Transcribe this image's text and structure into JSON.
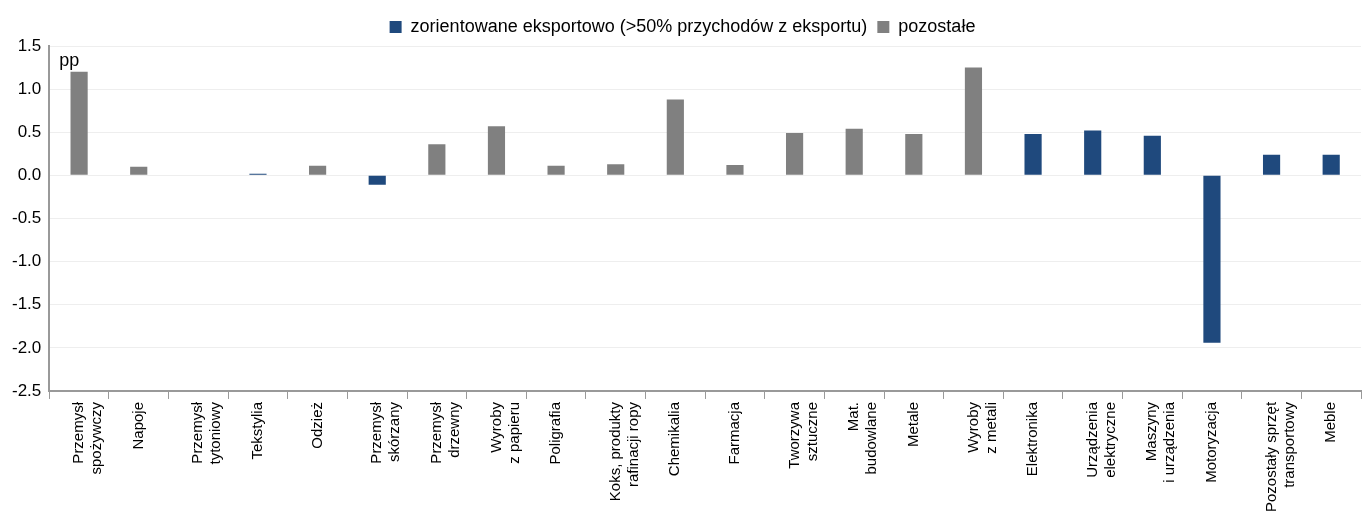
{
  "chart_data": {
    "type": "bar",
    "ylabel": "pp",
    "categories": [
      "Przemysł\nspożywczy",
      "Napoje",
      "Przemysł\ntytoniowy",
      "Tekstylia",
      "Odzież",
      "Przemysł\nskórzany",
      "Przemysł\ndrzewny",
      "Wyroby\nz papieru",
      "Poligrafia",
      "Koks, produkty\nrafinacji ropy",
      "Chemikalia",
      "Farmacja",
      "Tworzywa\nsztuczne",
      "Mat.\nbudowlane",
      "Metale",
      "Wyroby\nz metali",
      "Elektronika",
      "Urządzenia\nelektryczne",
      "Maszyny\ni urządzenia",
      "Motoryzacja",
      "Pozostały sprzęt\ntransportowy",
      "Meble"
    ],
    "series": [
      {
        "name": "zorientowane eksportowo (>50% przychodów z eksportu)",
        "color": "#1f497d",
        "values": [
          null,
          null,
          null,
          0.02,
          null,
          -0.11,
          null,
          null,
          null,
          null,
          null,
          null,
          null,
          null,
          null,
          null,
          0.48,
          0.52,
          0.46,
          -1.94,
          0.24,
          0.24
        ]
      },
      {
        "name": "pozostałe",
        "color": "#808080",
        "values": [
          1.2,
          0.1,
          0,
          null,
          0.11,
          null,
          0.36,
          0.57,
          0.11,
          0.13,
          0.88,
          0.12,
          0.49,
          0.54,
          0.48,
          1.25,
          null,
          null,
          null,
          null,
          null,
          null
        ]
      }
    ],
    "ylim": [
      -2.5,
      1.5
    ],
    "yticks": [
      {
        "value": -2.5,
        "label": "-2.5"
      },
      {
        "value": -2,
        "label": "-2.0"
      },
      {
        "value": -1.5,
        "label": "-1.5"
      },
      {
        "value": -1,
        "label": "-1.0"
      },
      {
        "value": -0.5,
        "label": "-0.5"
      },
      {
        "value": 0,
        "label": "0.0"
      },
      {
        "value": 0.5,
        "label": "0.5"
      },
      {
        "value": 1,
        "label": "1.0"
      },
      {
        "value": 1.5,
        "label": "1.5"
      }
    ],
    "grid": "y",
    "legend": "top"
  }
}
